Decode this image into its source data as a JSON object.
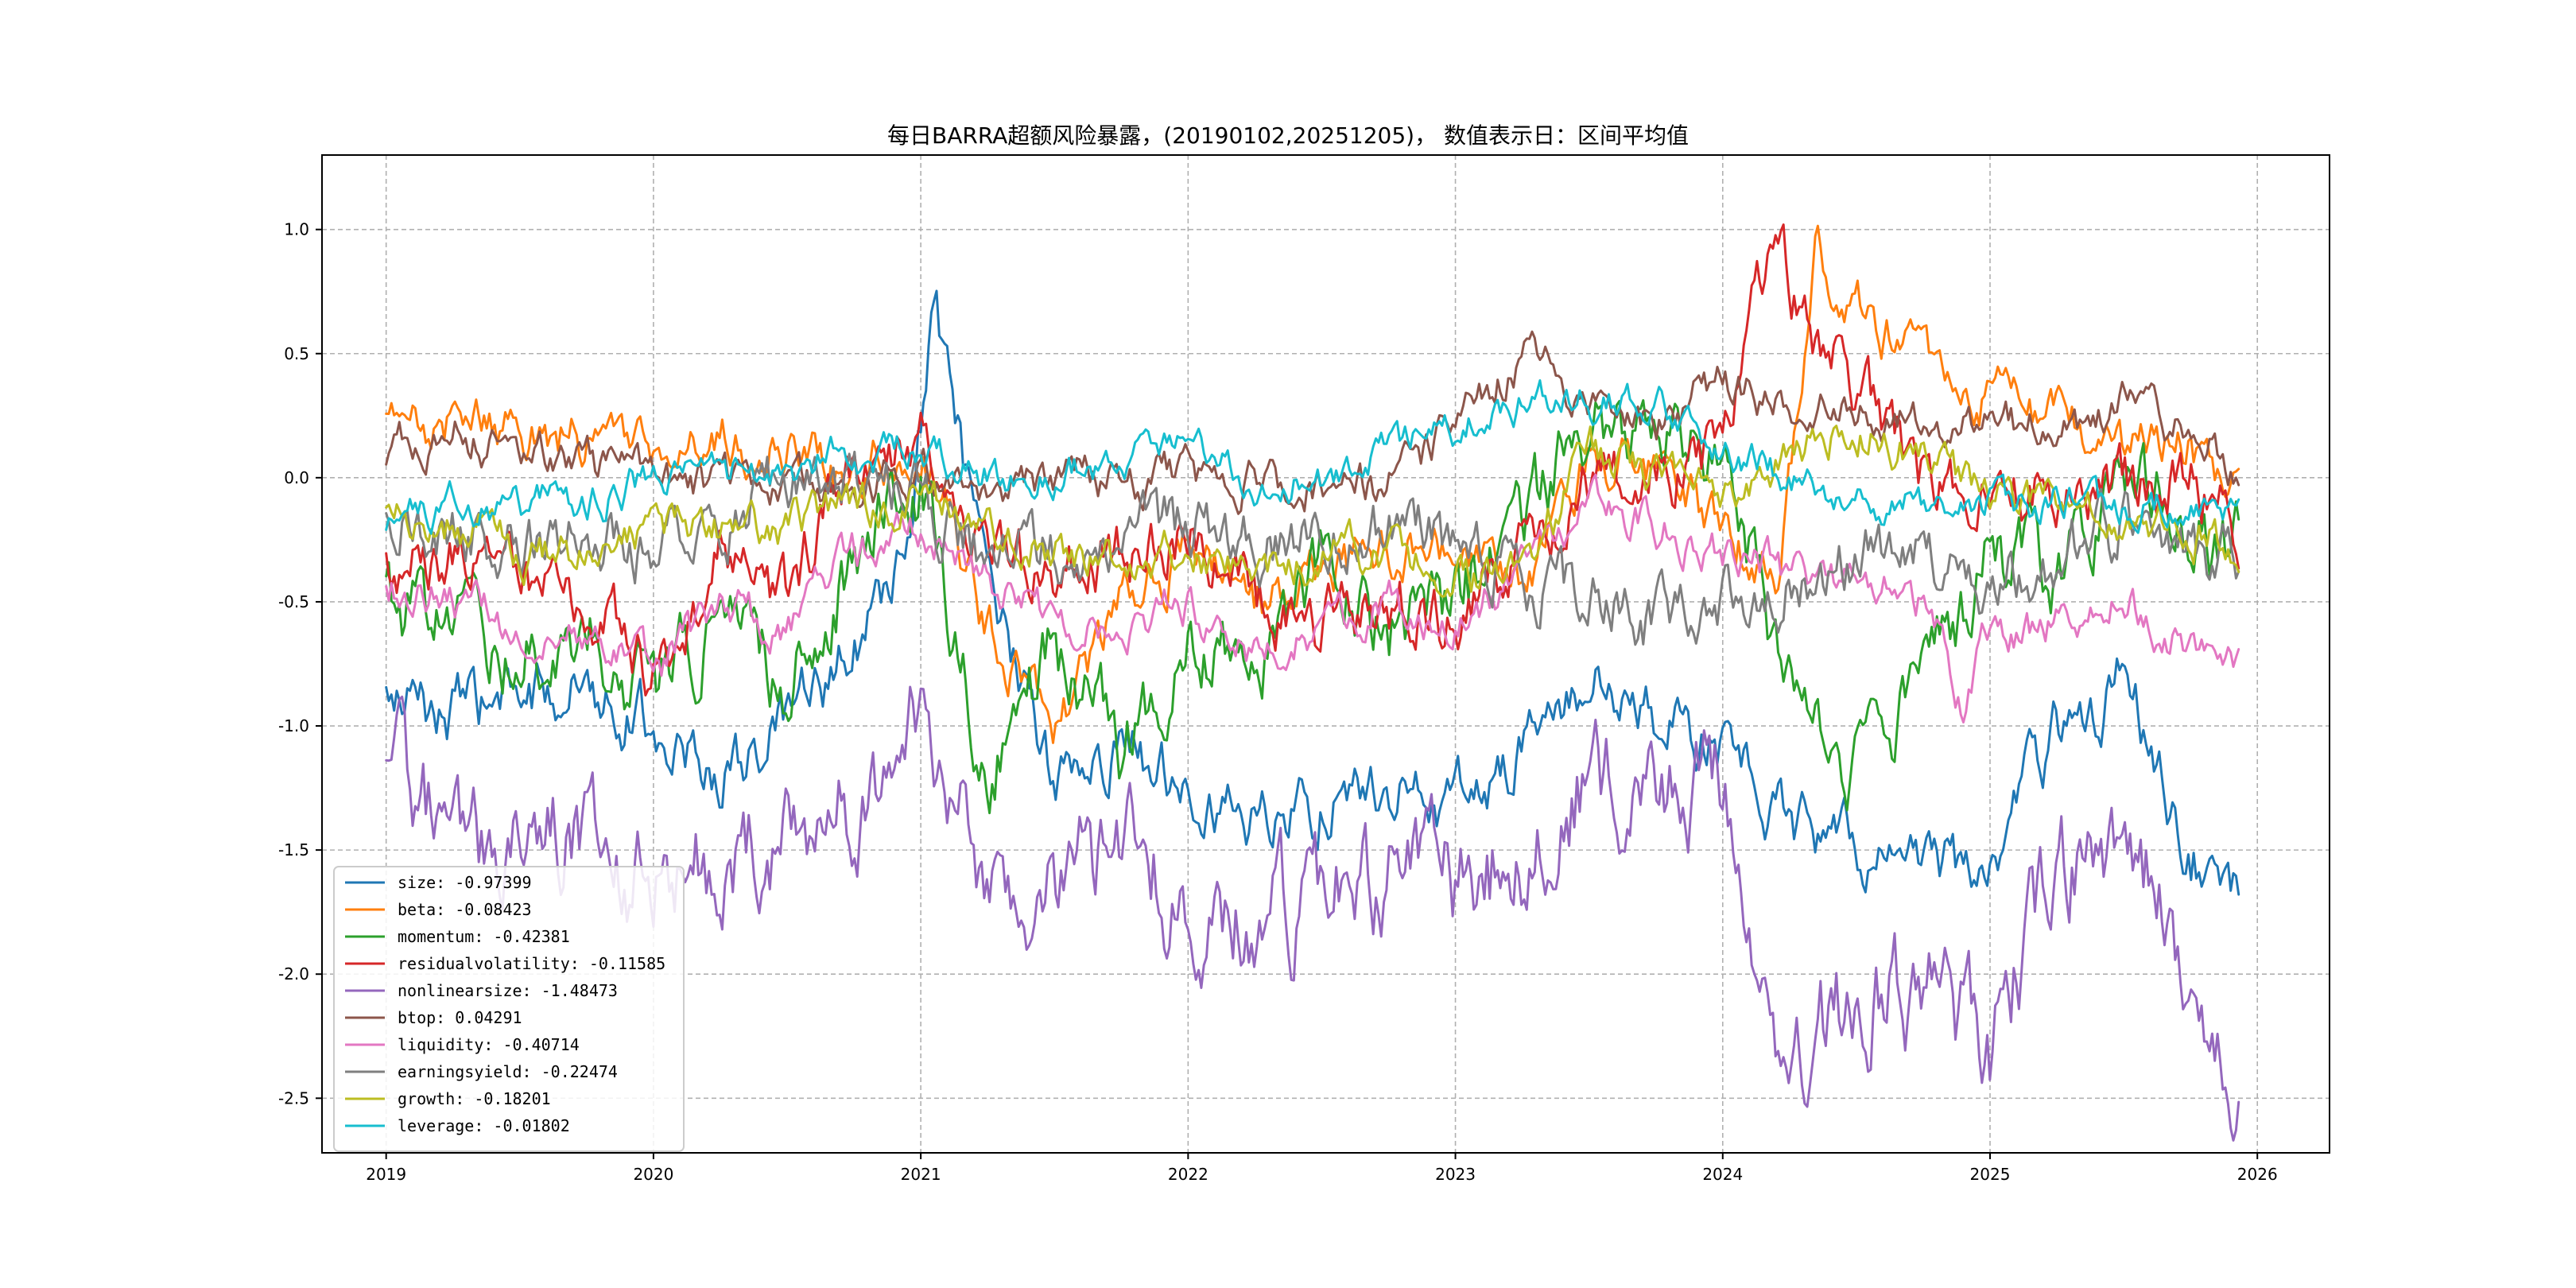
{
  "chart_data": {
    "type": "line",
    "title": "每日BARRA超额风险暴露，(20190102,20251205)， 数值表示日：区间平均值",
    "xlabel": "",
    "ylabel": "",
    "xlim": [
      2018.76,
      2026.27
    ],
    "ylim": [
      -2.72,
      1.3
    ],
    "x_ticks": [
      2019,
      2020,
      2021,
      2022,
      2023,
      2024,
      2025,
      2026
    ],
    "x_tick_labels": [
      "2019",
      "2020",
      "2021",
      "2022",
      "2023",
      "2024",
      "2025",
      "2026"
    ],
    "y_ticks": [
      1.0,
      0.5,
      0.0,
      -0.5,
      -1.0,
      -1.5,
      -2.0,
      -2.5
    ],
    "y_tick_labels": [
      "1.0",
      "0.5",
      "0.0",
      "-0.5",
      "-1.0",
      "-1.5",
      "-2.0",
      "-2.5"
    ],
    "grid": true,
    "legend_position": "lower-left",
    "x_start": 2019.0,
    "x_end": 2025.93,
    "series": [
      {
        "name": "size",
        "legend": "size: -0.97399",
        "color": "#1f77b4",
        "x": [
          2019.0,
          2019.25,
          2019.5,
          2019.75,
          2020.0,
          2020.25,
          2020.5,
          2020.75,
          2020.95,
          2021.05,
          2021.25,
          2021.5,
          2021.75,
          2022.0,
          2022.25,
          2022.5,
          2022.75,
          2023.0,
          2023.25,
          2023.5,
          2023.75,
          2024.0,
          2024.25,
          2024.5,
          2024.75,
          2025.0,
          2025.25,
          2025.5,
          2025.75,
          2025.93
        ],
        "values": [
          -0.9,
          -0.95,
          -0.9,
          -0.8,
          -1.0,
          -1.2,
          -1.0,
          -0.7,
          -0.3,
          0.7,
          -0.5,
          -1.2,
          -1.1,
          -1.2,
          -1.4,
          -1.3,
          -1.25,
          -1.3,
          -1.1,
          -0.8,
          -1.0,
          -1.1,
          -1.4,
          -1.5,
          -1.55,
          -1.6,
          -1.0,
          -0.8,
          -1.5,
          -1.65
        ],
        "noise": 0.12
      },
      {
        "name": "beta",
        "legend": "beta: -0.08423",
        "color": "#ff7f0e",
        "x": [
          2019.0,
          2019.25,
          2019.5,
          2019.75,
          2020.0,
          2020.25,
          2020.5,
          2020.75,
          2021.0,
          2021.25,
          2021.5,
          2021.75,
          2022.0,
          2022.25,
          2022.5,
          2022.75,
          2023.0,
          2023.25,
          2023.5,
          2023.75,
          2024.0,
          2024.2,
          2024.35,
          2024.5,
          2024.75,
          2025.0,
          2025.25,
          2025.5,
          2025.75,
          2025.93
        ],
        "values": [
          0.2,
          0.25,
          0.2,
          0.15,
          0.1,
          0.15,
          0.1,
          0.0,
          0.2,
          -0.6,
          -1.0,
          -0.5,
          -0.3,
          -0.5,
          -0.4,
          -0.3,
          -0.3,
          -0.5,
          0.1,
          0.0,
          -0.2,
          -0.4,
          0.9,
          0.7,
          0.5,
          0.3,
          0.2,
          0.1,
          0.1,
          -0.1
        ],
        "noise": 0.1
      },
      {
        "name": "momentum",
        "legend": "momentum: -0.42381",
        "color": "#2ca02c",
        "x": [
          2019.0,
          2019.25,
          2019.5,
          2019.75,
          2020.0,
          2020.25,
          2020.5,
          2020.75,
          2021.0,
          2021.25,
          2021.5,
          2021.75,
          2022.0,
          2022.25,
          2022.5,
          2022.75,
          2023.0,
          2023.25,
          2023.5,
          2023.75,
          2024.0,
          2024.25,
          2024.5,
          2024.75,
          2025.0,
          2025.25,
          2025.5,
          2025.75,
          2025.93
        ],
        "values": [
          -0.5,
          -0.6,
          -0.7,
          -0.6,
          -0.9,
          -0.6,
          -0.8,
          -0.3,
          0.0,
          -1.2,
          -0.7,
          -1.1,
          -0.6,
          -0.8,
          -0.3,
          -0.6,
          -0.5,
          -0.2,
          0.2,
          0.2,
          0.1,
          -0.9,
          -1.2,
          -0.8,
          -0.3,
          -0.4,
          0.0,
          -0.2,
          -0.3
        ],
        "noise": 0.15
      },
      {
        "name": "residualvolatility",
        "legend": "residualvolatility: -0.11585",
        "color": "#d62728",
        "x": [
          2019.0,
          2019.25,
          2019.5,
          2019.75,
          2020.0,
          2020.25,
          2020.5,
          2020.75,
          2021.0,
          2021.25,
          2021.5,
          2021.75,
          2022.0,
          2022.25,
          2022.5,
          2022.75,
          2023.0,
          2023.25,
          2023.5,
          2023.75,
          2024.0,
          2024.2,
          2024.3,
          2024.5,
          2024.75,
          2025.0,
          2025.25,
          2025.5,
          2025.75,
          2025.93
        ],
        "values": [
          -0.4,
          -0.3,
          -0.4,
          -0.5,
          -0.8,
          -0.3,
          -0.5,
          0.1,
          0.2,
          -0.3,
          -0.4,
          -0.3,
          -0.2,
          -0.5,
          -0.6,
          -0.5,
          -0.6,
          -0.3,
          0.0,
          0.0,
          0.1,
          1.0,
          0.6,
          0.4,
          0.0,
          0.0,
          -0.1,
          0.0,
          0.0,
          -0.2
        ],
        "noise": 0.12
      },
      {
        "name": "nonlinearsize",
        "legend": "nonlinearsize: -1.48473",
        "color": "#9467bd",
        "x": [
          2019.0,
          2019.25,
          2019.5,
          2019.75,
          2020.0,
          2020.25,
          2020.5,
          2020.75,
          2021.0,
          2021.25,
          2021.5,
          2021.75,
          2022.0,
          2022.25,
          2022.5,
          2022.75,
          2023.0,
          2023.25,
          2023.5,
          2023.75,
          2024.0,
          2024.2,
          2024.4,
          2024.6,
          2024.8,
          2025.0,
          2025.25,
          2025.5,
          2025.75,
          2025.93
        ],
        "values": [
          -1.0,
          -1.5,
          -1.4,
          -1.5,
          -1.6,
          -1.5,
          -1.4,
          -1.3,
          -1.0,
          -1.7,
          -1.6,
          -1.5,
          -1.7,
          -1.8,
          -1.7,
          -1.6,
          -1.7,
          -1.5,
          -1.2,
          -1.3,
          -1.2,
          -2.3,
          -2.2,
          -2.0,
          -2.1,
          -2.3,
          -1.6,
          -1.4,
          -2.0,
          -2.4
        ],
        "noise": 0.2
      },
      {
        "name": "btop",
        "legend": "btop: 0.04291",
        "color": "#8c564b",
        "x": [
          2019.0,
          2019.25,
          2019.5,
          2019.75,
          2020.0,
          2020.25,
          2020.5,
          2020.75,
          2021.0,
          2021.25,
          2021.5,
          2021.75,
          2022.0,
          2022.25,
          2022.5,
          2022.75,
          2023.0,
          2023.25,
          2023.5,
          2023.75,
          2024.0,
          2024.25,
          2024.5,
          2024.75,
          2025.0,
          2025.25,
          2025.5,
          2025.75,
          2025.93
        ],
        "values": [
          0.1,
          0.2,
          0.1,
          0.05,
          0.0,
          -0.02,
          -0.02,
          -0.01,
          0.0,
          -0.01,
          -0.01,
          -0.01,
          -0.01,
          -0.01,
          -0.02,
          -0.02,
          0.2,
          0.5,
          0.3,
          0.2,
          0.4,
          0.3,
          0.3,
          0.2,
          0.2,
          0.2,
          0.3,
          0.2,
          0.0
        ],
        "noise": 0.08
      },
      {
        "name": "liquidity",
        "legend": "liquidity: -0.40714",
        "color": "#e377c2",
        "x": [
          2019.0,
          2019.25,
          2019.5,
          2019.75,
          2020.0,
          2020.25,
          2020.5,
          2020.75,
          2021.0,
          2021.25,
          2021.5,
          2021.75,
          2022.0,
          2022.25,
          2022.5,
          2022.75,
          2023.0,
          2023.25,
          2023.5,
          2023.75,
          2024.0,
          2024.25,
          2024.5,
          2024.75,
          2024.9,
          2025.0,
          2025.25,
          2025.5,
          2025.75,
          2025.93
        ],
        "values": [
          -0.4,
          -0.5,
          -0.6,
          -0.6,
          -0.8,
          -0.5,
          -0.6,
          -0.3,
          -0.2,
          -0.4,
          -0.6,
          -0.6,
          -0.5,
          -0.7,
          -0.6,
          -0.5,
          -0.6,
          -0.4,
          -0.1,
          -0.2,
          -0.3,
          -0.4,
          -0.4,
          -0.5,
          -0.9,
          -0.6,
          -0.6,
          -0.5,
          -0.7,
          -0.8
        ],
        "noise": 0.08
      },
      {
        "name": "earningsyield",
        "legend": "earningsyield: -0.22474",
        "color": "#7f7f7f",
        "x": [
          2019.0,
          2019.25,
          2019.5,
          2019.75,
          2020.0,
          2020.25,
          2020.5,
          2020.75,
          2021.0,
          2021.25,
          2021.5,
          2021.75,
          2022.0,
          2022.25,
          2022.5,
          2022.75,
          2023.0,
          2023.25,
          2023.5,
          2023.75,
          2024.0,
          2024.25,
          2024.5,
          2024.75,
          2025.0,
          2025.25,
          2025.5,
          2025.75,
          2025.93
        ],
        "values": [
          -0.1,
          -0.2,
          -0.3,
          -0.2,
          -0.3,
          -0.2,
          0.0,
          0.0,
          -0.1,
          -0.3,
          -0.3,
          -0.2,
          -0.2,
          -0.3,
          -0.2,
          -0.2,
          -0.3,
          -0.4,
          -0.5,
          -0.6,
          -0.5,
          -0.4,
          -0.3,
          -0.3,
          -0.4,
          -0.3,
          -0.2,
          -0.3,
          -0.35
        ],
        "noise": 0.12
      },
      {
        "name": "growth",
        "legend": "growth: -0.18201",
        "color": "#bcbd22",
        "x": [
          2019.0,
          2019.25,
          2019.5,
          2019.75,
          2020.0,
          2020.25,
          2020.5,
          2020.75,
          2021.0,
          2021.25,
          2021.5,
          2021.75,
          2022.0,
          2022.25,
          2022.5,
          2022.75,
          2023.0,
          2023.25,
          2023.5,
          2023.75,
          2024.0,
          2024.25,
          2024.5,
          2024.75,
          2025.0,
          2025.25,
          2025.5,
          2025.75,
          2025.93
        ],
        "values": [
          -0.1,
          -0.2,
          -0.3,
          -0.3,
          -0.2,
          -0.2,
          -0.2,
          -0.1,
          -0.1,
          -0.2,
          -0.3,
          -0.3,
          -0.3,
          -0.4,
          -0.3,
          -0.3,
          -0.4,
          -0.4,
          0.1,
          0.0,
          -0.1,
          0.1,
          0.2,
          0.1,
          -0.1,
          -0.1,
          -0.2,
          -0.2,
          -0.3
        ],
        "noise": 0.08
      },
      {
        "name": "leverage",
        "legend": "leverage: -0.01802",
        "color": "#17becf",
        "x": [
          2019.0,
          2019.25,
          2019.5,
          2019.75,
          2020.0,
          2020.25,
          2020.5,
          2020.75,
          2021.0,
          2021.25,
          2021.5,
          2021.75,
          2022.0,
          2022.25,
          2022.5,
          2022.75,
          2023.0,
          2023.25,
          2023.5,
          2023.75,
          2024.0,
          2024.25,
          2024.5,
          2024.75,
          2025.0,
          2025.25,
          2025.5,
          2025.75,
          2025.93
        ],
        "values": [
          -0.2,
          -0.1,
          -0.1,
          -0.1,
          0.0,
          0.0,
          0.05,
          0.1,
          0.1,
          0.0,
          0.0,
          0.1,
          0.1,
          0.0,
          0.0,
          0.1,
          0.2,
          0.3,
          0.3,
          0.3,
          0.1,
          0.0,
          -0.1,
          -0.1,
          -0.1,
          -0.1,
          -0.1,
          -0.1,
          -0.15
        ],
        "noise": 0.07
      }
    ]
  }
}
